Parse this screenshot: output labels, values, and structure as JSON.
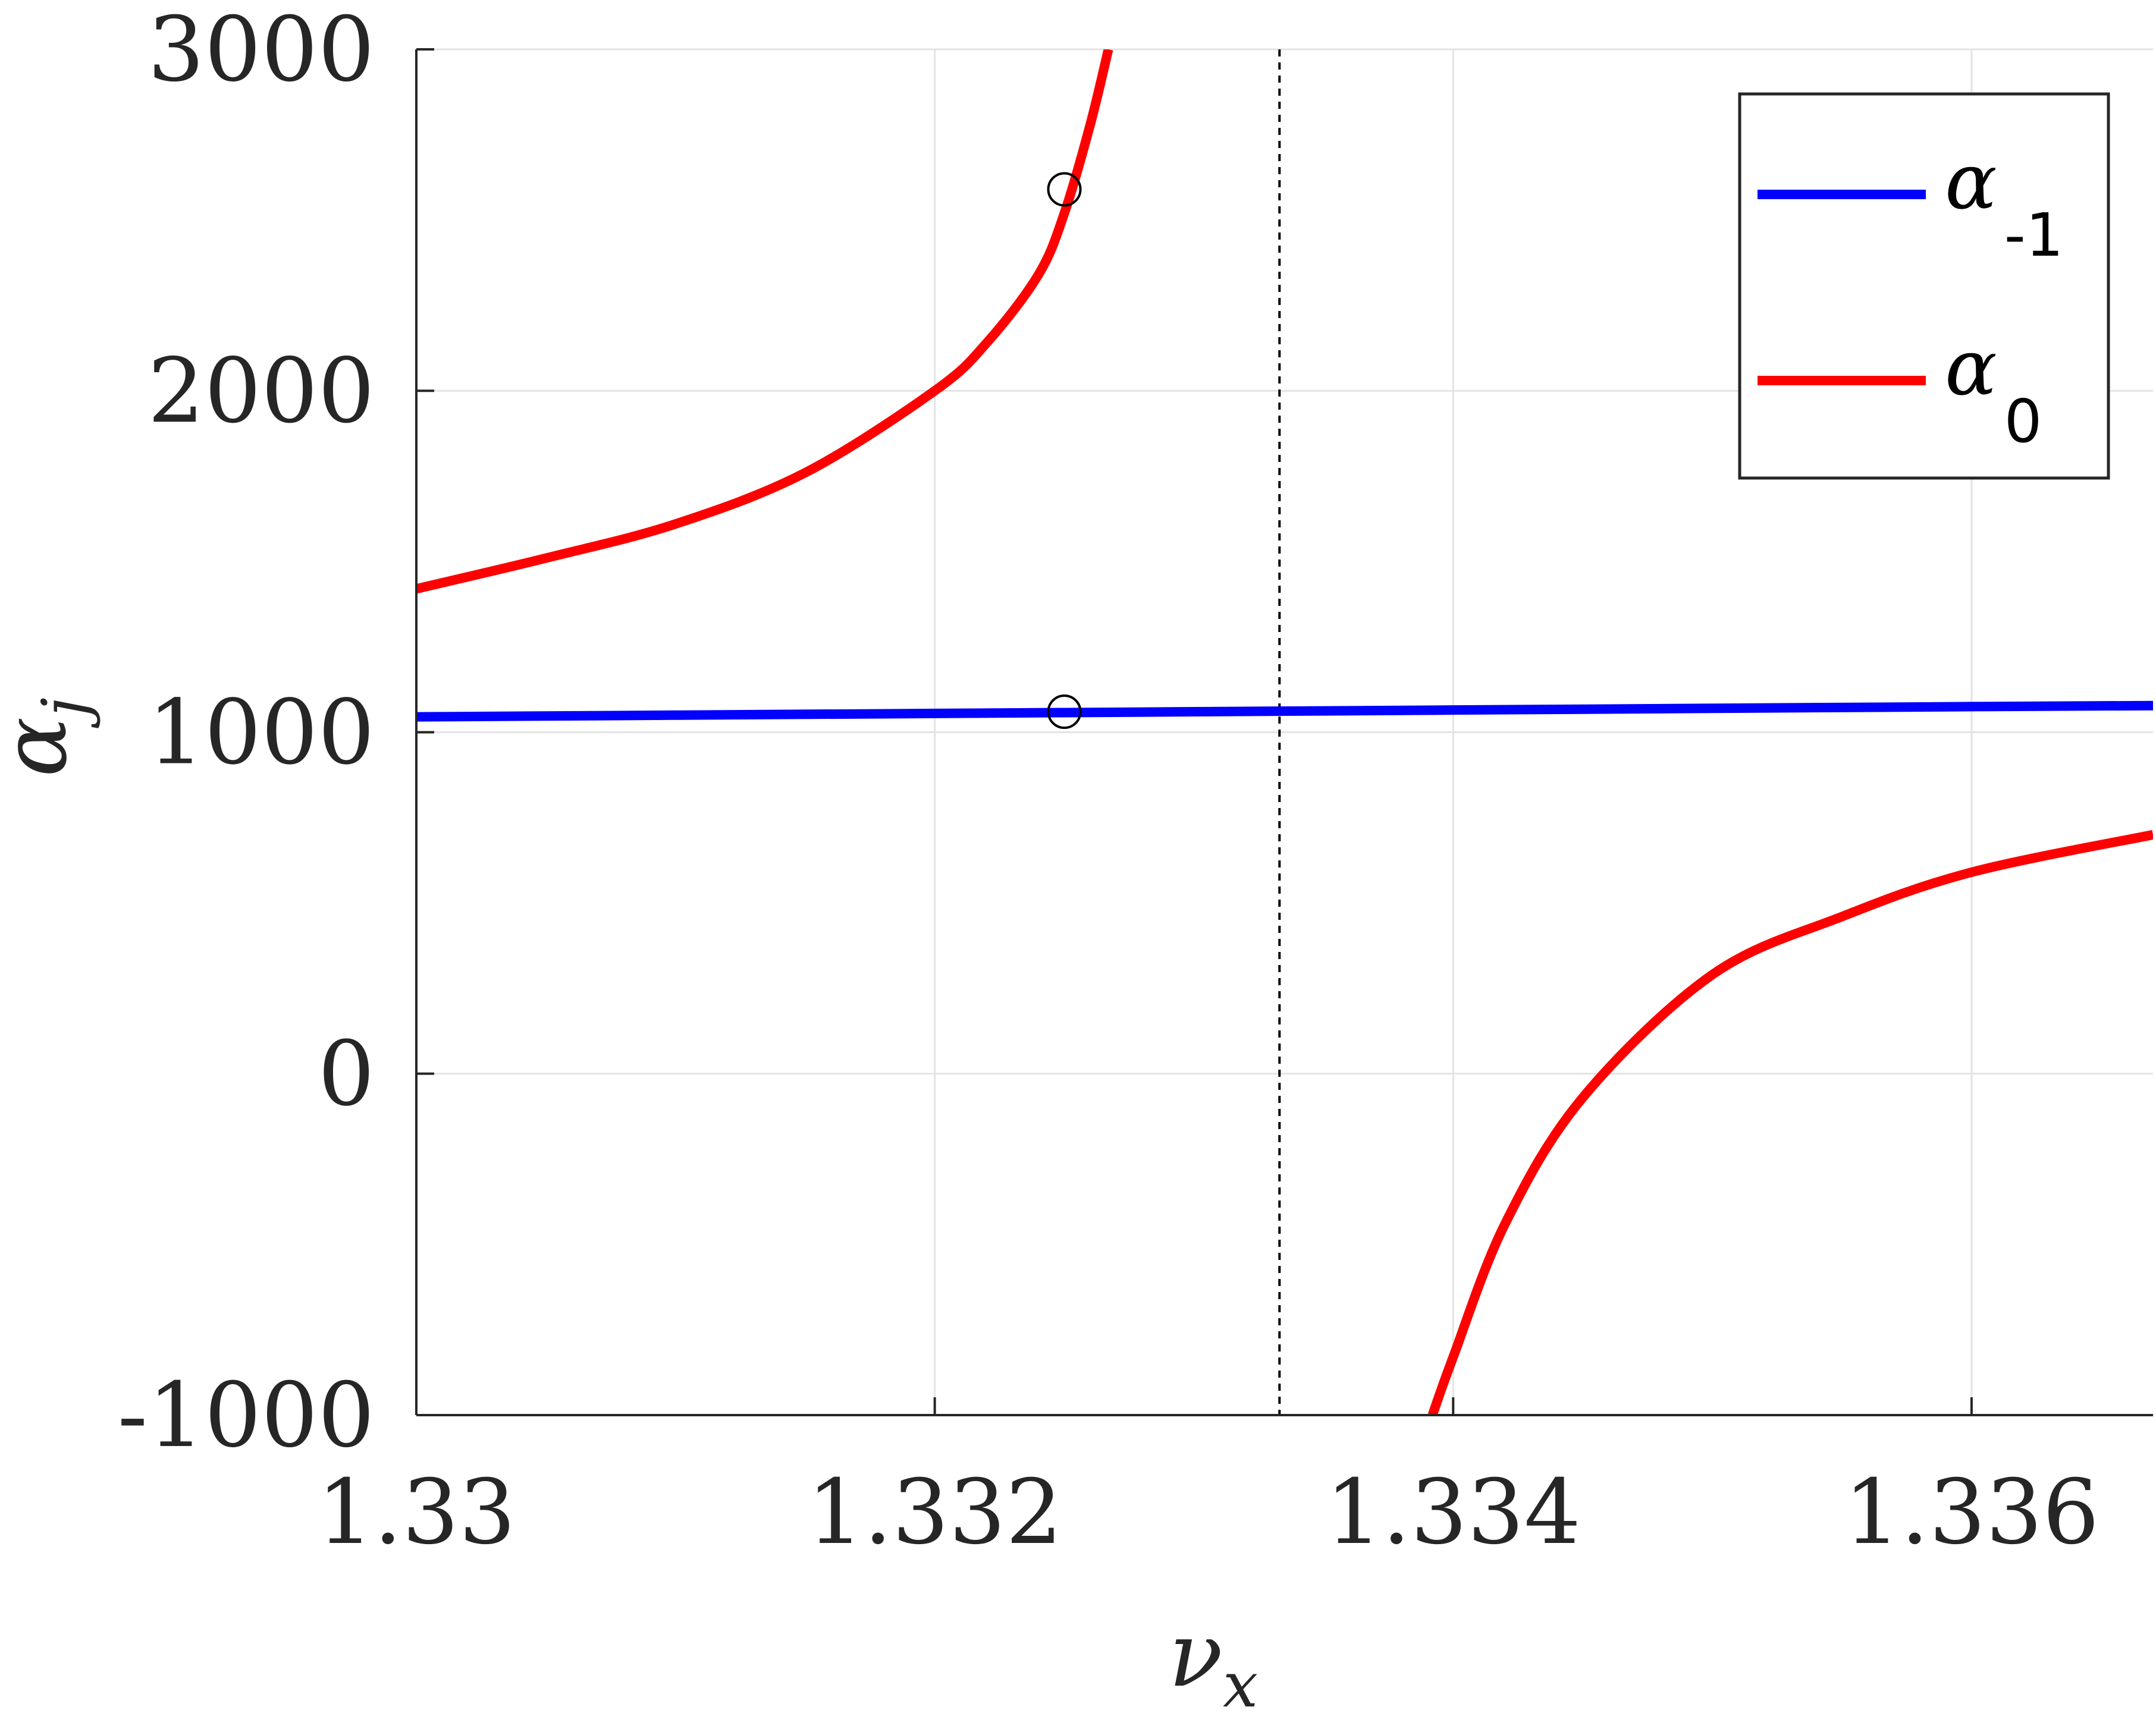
{
  "chart_data": {
    "type": "line",
    "xlabel": {
      "symbol": "ν",
      "sub": "x"
    },
    "ylabel": {
      "symbol": "α",
      "sub": "j"
    },
    "xlim": [
      1.33,
      1.3367
    ],
    "ylim": [
      -1000,
      3000
    ],
    "grid": true,
    "legend_position": "top-right",
    "x_ticks": [
      1.33,
      1.332,
      1.334,
      1.336
    ],
    "x_tick_labels": [
      "1.33",
      "1.332",
      "1.334",
      "1.336"
    ],
    "y_ticks": [
      -1000,
      0,
      1000,
      2000,
      3000
    ],
    "y_tick_labels": [
      "-1000",
      "0",
      "1000",
      "2000",
      "3000"
    ],
    "vertical_reference_line": {
      "x": 1.33333,
      "style": "dashed",
      "color": "#000000"
    },
    "series": [
      {
        "name": {
          "symbol": "α",
          "sub": "-1"
        },
        "color": "#0000ff",
        "x": [
          1.33,
          1.331,
          1.332,
          1.333,
          1.334,
          1.335,
          1.336,
          1.3367
        ],
        "y": [
          1045,
          1050,
          1055,
          1060,
          1065,
          1070,
          1075,
          1078
        ]
      },
      {
        "name": {
          "symbol": "α",
          "sub": "0"
        },
        "color": "#ff0000",
        "segments": [
          {
            "x": [
              1.33,
              1.3305,
              1.331,
              1.3315,
              1.332,
              1.3322,
              1.3324,
              1.3325,
              1.3326,
              1.33267
            ],
            "y": [
              1420,
              1510,
              1610,
              1760,
              2000,
              2140,
              2340,
              2520,
              2780,
              3000
            ]
          },
          {
            "x": [
              1.33392,
              1.334,
              1.3342,
              1.3345,
              1.335,
              1.3355,
              1.336,
              1.3367
            ],
            "y": [
              -1000,
              -830,
              -440,
              -70,
              290,
              460,
              590,
              700
            ]
          }
        ]
      }
    ],
    "markers": [
      {
        "x": 1.3325,
        "y": 2590,
        "shape": "open-circle"
      },
      {
        "x": 1.3325,
        "y": 1060,
        "shape": "open-circle"
      }
    ]
  }
}
